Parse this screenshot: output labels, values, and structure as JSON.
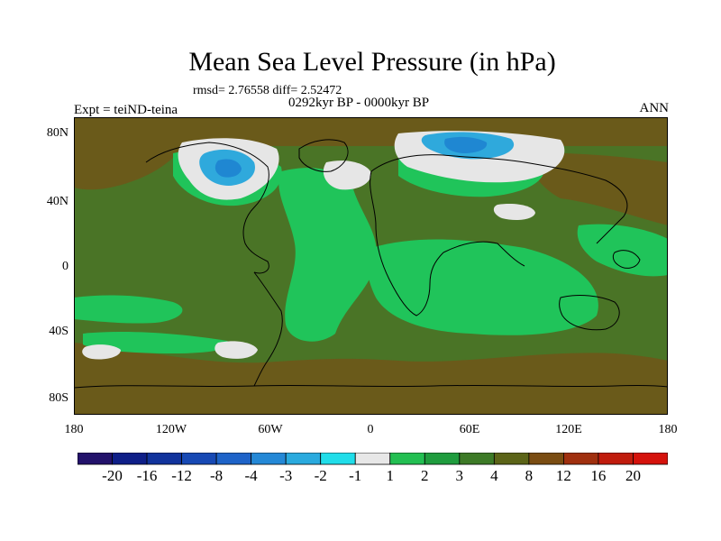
{
  "title": "Mean Sea Level Pressure (in hPa)",
  "stats_line": "rmsd= 2.76558 diff= 2.52472",
  "subtitle": "0292kyr BP - 0000kyr BP",
  "experiment": "Expt = teiND-teina",
  "season": "ANN",
  "axes": {
    "y_ticks": [
      "80N",
      "40N",
      "0",
      "40S",
      "80S"
    ],
    "x_ticks": [
      "180",
      "120W",
      "60W",
      "0",
      "60E",
      "120E",
      "180"
    ]
  },
  "colorbar": {
    "labels": [
      "-20",
      "-16",
      "-12",
      "-8",
      "-4",
      "-3",
      "-2",
      "-1",
      "1",
      "2",
      "3",
      "4",
      "8",
      "12",
      "16",
      "20"
    ],
    "colors": [
      "#23126b",
      "#0f1f88",
      "#11339c",
      "#1749b4",
      "#1e63c8",
      "#2488d6",
      "#2aaade",
      "#20dde9",
      "#e7e7e7",
      "#23bf52",
      "#1f9c3e",
      "#3d7a27",
      "#5c6418",
      "#7a4d12",
      "#a0300f",
      "#c01c0d",
      "#d5120c"
    ]
  },
  "map_colors": {
    "level_3": "#4a7426",
    "level_2": "#26b44e",
    "level_1": "#20c45a",
    "level_4": "#6a5a1a",
    "level_near_zero": "#e6e6e6",
    "level_neg2": "#2fa9dc",
    "level_neg3": "#1f87d2",
    "coast": "#000000"
  }
}
